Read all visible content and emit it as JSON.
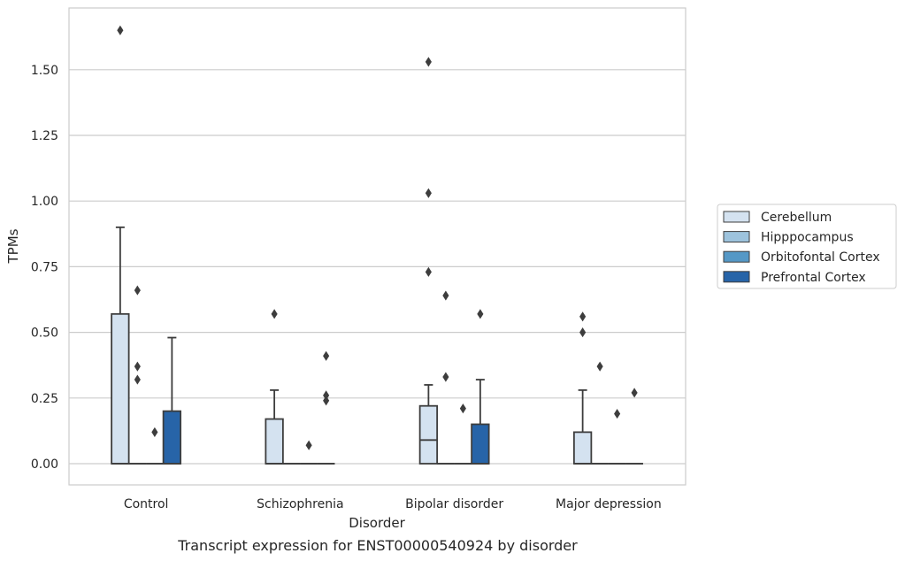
{
  "chart_data": {
    "type": "box",
    "title": "",
    "caption": "Transcript expression for ENST00000540924 by disorder",
    "xlabel": "Disorder",
    "ylabel": "TPMs",
    "ylim": [
      -0.08,
      1.74
    ],
    "yticks": [
      "0.00",
      "0.25",
      "0.50",
      "0.75",
      "1.00",
      "1.25",
      "1.50"
    ],
    "ytick_values": [
      0,
      0.25,
      0.5,
      0.75,
      1.0,
      1.25,
      1.5
    ],
    "grid": true,
    "legend_position": "right",
    "categories": [
      "Control",
      "Schizophrenia",
      "Bipolar disorder",
      "Major depression"
    ],
    "series": [
      {
        "name": "Cerebellum",
        "color": "#d4e2f0",
        "boxes": [
          {
            "q1": 0,
            "median": 0,
            "q3": 0.57,
            "whisker_low": 0,
            "whisker_high": 0.9,
            "outliers": [
              1.65
            ]
          },
          {
            "q1": 0,
            "median": 0,
            "q3": 0.17,
            "whisker_low": 0,
            "whisker_high": 0.28,
            "outliers": [
              0.57
            ]
          },
          {
            "q1": 0,
            "median": 0.09,
            "q3": 0.22,
            "whisker_low": 0,
            "whisker_high": 0.3,
            "outliers": [
              0.73,
              1.03,
              1.53
            ]
          },
          {
            "q1": 0,
            "median": 0,
            "q3": 0.12,
            "whisker_low": 0,
            "whisker_high": 0.28,
            "outliers": [
              0.5,
              0.56
            ]
          }
        ]
      },
      {
        "name": "Hipppocampus",
        "color": "#9dc3dd",
        "boxes": [
          {
            "q1": 0,
            "median": 0,
            "q3": 0,
            "whisker_low": 0,
            "whisker_high": 0,
            "outliers": [
              0.32,
              0.37,
              0.66
            ]
          },
          {
            "q1": 0,
            "median": 0,
            "q3": 0,
            "whisker_low": 0,
            "whisker_high": 0,
            "outliers": []
          },
          {
            "q1": 0,
            "median": 0,
            "q3": 0,
            "whisker_low": 0,
            "whisker_high": 0,
            "outliers": [
              0.33,
              0.64
            ]
          },
          {
            "q1": 0,
            "median": 0,
            "q3": 0,
            "whisker_low": 0,
            "whisker_high": 0,
            "outliers": [
              0.37
            ]
          }
        ]
      },
      {
        "name": "Orbitofontal Cortex",
        "color": "#5598c6",
        "boxes": [
          {
            "q1": 0,
            "median": 0,
            "q3": 0,
            "whisker_low": 0,
            "whisker_high": 0,
            "outliers": [
              0.12
            ]
          },
          {
            "q1": 0,
            "median": 0,
            "q3": 0,
            "whisker_low": 0,
            "whisker_high": 0,
            "outliers": [
              0.07
            ]
          },
          {
            "q1": 0,
            "median": 0,
            "q3": 0,
            "whisker_low": 0,
            "whisker_high": 0,
            "outliers": [
              0.21
            ]
          },
          {
            "q1": 0,
            "median": 0,
            "q3": 0,
            "whisker_low": 0,
            "whisker_high": 0,
            "outliers": [
              0.19
            ]
          }
        ]
      },
      {
        "name": "Prefrontal Cortex",
        "color": "#2764a8",
        "boxes": [
          {
            "q1": 0,
            "median": 0,
            "q3": 0.2,
            "whisker_low": 0,
            "whisker_high": 0.48,
            "outliers": []
          },
          {
            "q1": 0,
            "median": 0,
            "q3": 0,
            "whisker_low": 0,
            "whisker_high": 0,
            "outliers": [
              0.24,
              0.26,
              0.41
            ]
          },
          {
            "q1": 0,
            "median": 0,
            "q3": 0.15,
            "whisker_low": 0,
            "whisker_high": 0.32,
            "outliers": [
              0.57
            ]
          },
          {
            "q1": 0,
            "median": 0,
            "q3": 0,
            "whisker_low": 0,
            "whisker_high": 0,
            "outliers": [
              0.27
            ]
          }
        ]
      }
    ]
  }
}
